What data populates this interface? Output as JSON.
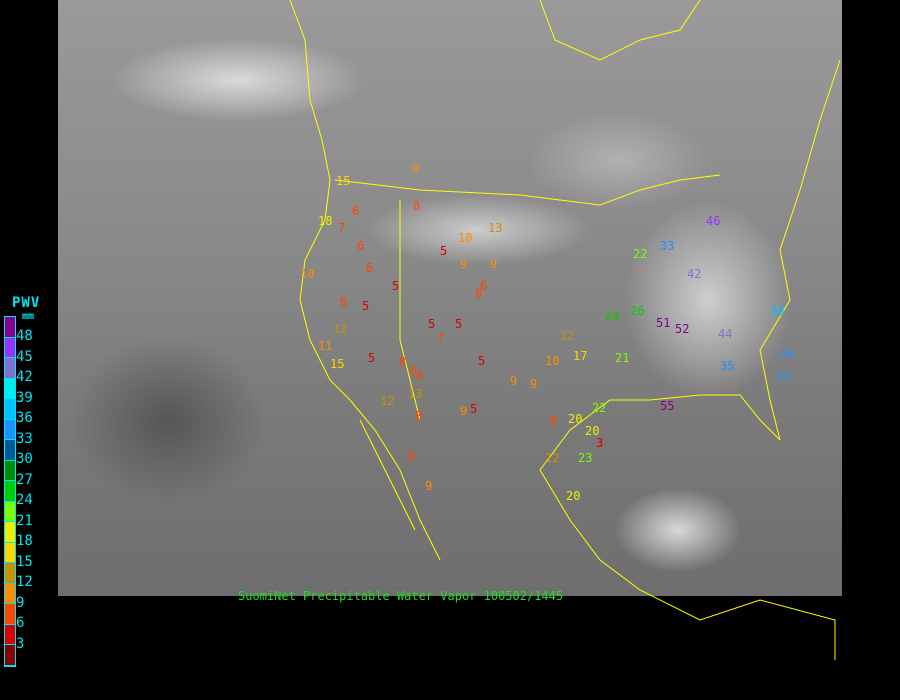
{
  "legend": {
    "title": "PWV",
    "unit": "mm",
    "labels": [
      "48",
      "45",
      "42",
      "39",
      "36",
      "33",
      "30",
      "27",
      "24",
      "21",
      "18",
      "15",
      "12",
      "9",
      "6",
      "3"
    ],
    "colors": [
      "#8b008b",
      "#9b30ff",
      "#8470d0",
      "#00eeee",
      "#00bfff",
      "#1e90ff",
      "#005a9a",
      "#008b00",
      "#00cd00",
      "#7cfc00",
      "#eeee00",
      "#ffd700",
      "#cd9000",
      "#ff8c00",
      "#ff4500",
      "#dd0000",
      "#8b0000"
    ]
  },
  "caption": "SuomiNet Precipitable Water Vapor 100502/1445",
  "colors": {
    "borders": "#ffff00",
    "caption": "#22dd22",
    "legend_text": "#00e5ee"
  },
  "stations": [
    "9",
    "15",
    "18",
    "6",
    "6",
    "7",
    "8",
    "13",
    "10",
    "9",
    "6",
    "5",
    "5",
    "6",
    "5",
    "5",
    "7",
    "9",
    "8",
    "12",
    "10",
    "15",
    "11",
    "5",
    "8",
    "6",
    "5",
    "8",
    "6",
    "5",
    "9",
    "13",
    "12",
    "9",
    "8",
    "5",
    "8",
    "9",
    "10",
    "12",
    "17",
    "21",
    "24",
    "26",
    "22",
    "33",
    "42",
    "46",
    "51",
    "52",
    "44",
    "35",
    "33",
    "38",
    "34",
    "55",
    "22",
    "20",
    "20",
    "23",
    "3",
    "12",
    "20",
    "9",
    "8"
  ]
}
